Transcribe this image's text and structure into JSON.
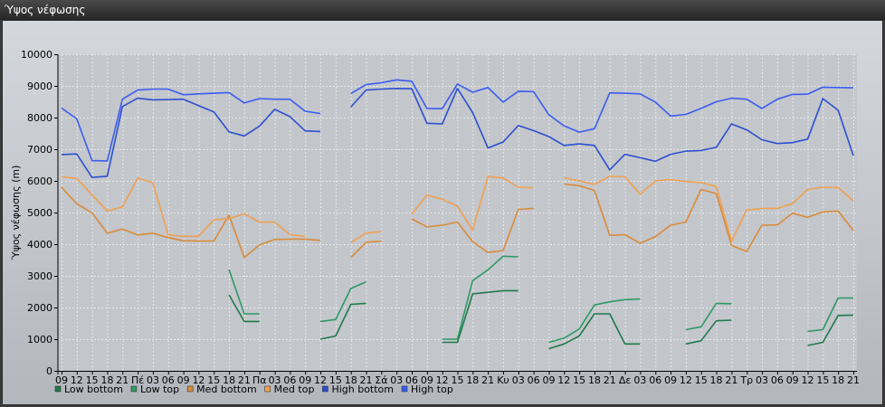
{
  "window": {
    "title": "Ύψος νέφωσης"
  },
  "chart_data": {
    "type": "line",
    "title": "",
    "xlabel": "",
    "ylabel": "Ύψος νέφωσης (m)",
    "ylim": [
      0,
      10000
    ],
    "yticks": [
      0,
      1000,
      2000,
      3000,
      4000,
      5000,
      6000,
      7000,
      8000,
      9000,
      10000
    ],
    "grid": true,
    "legend_position": "bottom-left",
    "x": [
      "09",
      "12",
      "15",
      "18",
      "21",
      "Πέ",
      "03",
      "06",
      "09",
      "12",
      "15",
      "18",
      "21",
      "Πα",
      "03",
      "06",
      "09",
      "12",
      "15",
      "18",
      "21",
      "Σά",
      "03",
      "06",
      "09",
      "12",
      "15",
      "18",
      "21",
      "Κυ",
      "03",
      "06",
      "09",
      "12",
      "15",
      "18",
      "21",
      "Δε",
      "03",
      "06",
      "09",
      "12",
      "15",
      "18",
      "21",
      "Τρ",
      "03",
      "06",
      "09",
      "12",
      "15",
      "18",
      "21"
    ],
    "series": [
      {
        "name": "Low bottom",
        "color": "#1f7a4a",
        "values": [
          null,
          null,
          null,
          null,
          null,
          null,
          null,
          null,
          null,
          null,
          null,
          2400,
          1560,
          1560,
          null,
          null,
          null,
          1000,
          1100,
          2100,
          2130,
          null,
          null,
          null,
          null,
          900,
          900,
          2430,
          2480,
          2530,
          2530,
          null,
          700,
          850,
          1100,
          1800,
          1800,
          850,
          850,
          null,
          null,
          850,
          950,
          1580,
          1600,
          null,
          null,
          null,
          null,
          800,
          900,
          1750,
          1760
        ]
      },
      {
        "name": "Low top",
        "color": "#2e9a63",
        "values": [
          null,
          null,
          null,
          null,
          null,
          null,
          null,
          null,
          null,
          null,
          null,
          3200,
          1800,
          1800,
          null,
          null,
          null,
          1560,
          1620,
          2600,
          2810,
          null,
          null,
          null,
          null,
          1000,
          1000,
          2850,
          3190,
          3620,
          3600,
          null,
          900,
          1030,
          1320,
          2080,
          2180,
          2250,
          2270,
          null,
          null,
          1300,
          1390,
          2130,
          2120,
          null,
          null,
          null,
          null,
          1250,
          1300,
          2300,
          2300
        ]
      },
      {
        "name": "Med bottom",
        "color": "#d98b3a",
        "values": [
          5800,
          5280,
          4990,
          4350,
          4480,
          4290,
          4350,
          4210,
          4110,
          4100,
          4100,
          4920,
          3580,
          3980,
          4150,
          4160,
          4160,
          4120,
          null,
          3580,
          4060,
          4100,
          null,
          4800,
          4550,
          4600,
          4700,
          4080,
          3740,
          3800,
          5100,
          5130,
          null,
          5900,
          5850,
          5700,
          4280,
          4300,
          4030,
          4240,
          4600,
          4700,
          5730,
          5600,
          3960,
          3770,
          4600,
          4610,
          4980,
          4850,
          5020,
          5050,
          4430
        ]
      },
      {
        "name": "Med top",
        "color": "#f0a050",
        "values": [
          6130,
          6080,
          5560,
          5050,
          5180,
          6090,
          5940,
          4300,
          4250,
          4250,
          4770,
          4810,
          4960,
          4700,
          4700,
          4300,
          4250,
          null,
          null,
          4050,
          4350,
          4400,
          null,
          4950,
          5550,
          5420,
          5200,
          4440,
          6140,
          6090,
          5800,
          5780,
          null,
          6100,
          6000,
          5890,
          6150,
          6130,
          5580,
          6000,
          6040,
          5980,
          5950,
          5820,
          4100,
          5080,
          5130,
          5130,
          5280,
          5730,
          5800,
          5790,
          5370
        ]
      },
      {
        "name": "High bottom",
        "color": "#2c4fcf",
        "values": [
          6830,
          6850,
          6110,
          6150,
          8350,
          8610,
          8560,
          8570,
          8580,
          8380,
          8180,
          7550,
          7420,
          7730,
          8260,
          8030,
          7580,
          7560,
          null,
          8330,
          8870,
          8900,
          8920,
          8910,
          7820,
          7800,
          8920,
          8160,
          7040,
          7230,
          7750,
          7590,
          7400,
          7120,
          7170,
          7120,
          6350,
          6840,
          6730,
          6620,
          6840,
          6940,
          6960,
          7060,
          7800,
          7610,
          7300,
          7180,
          7210,
          7320,
          8600,
          8230,
          6800
        ]
      },
      {
        "name": "High top",
        "color": "#3a5cf0",
        "values": [
          8300,
          7960,
          6640,
          6630,
          8580,
          8870,
          8900,
          8900,
          8720,
          8750,
          8770,
          8790,
          8460,
          8600,
          8580,
          8580,
          8200,
          8130,
          null,
          8760,
          9040,
          9100,
          9190,
          9150,
          8290,
          8280,
          9060,
          8800,
          8950,
          8490,
          8830,
          8820,
          8090,
          7740,
          7540,
          7650,
          8780,
          8770,
          8750,
          8490,
          8050,
          8100,
          8290,
          8500,
          8610,
          8580,
          8290,
          8580,
          8730,
          8740,
          8960,
          8950,
          8940
        ]
      }
    ]
  }
}
